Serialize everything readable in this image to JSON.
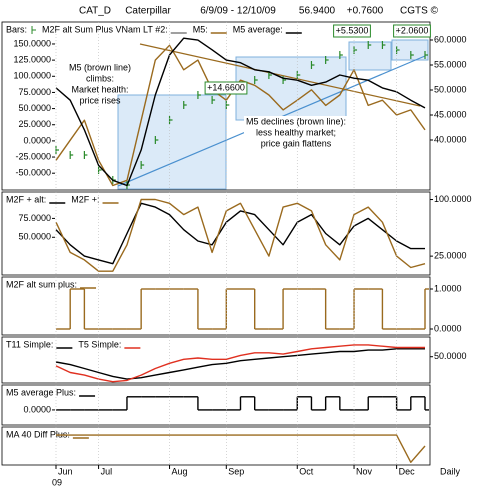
{
  "header": {
    "symbol": "CAT_D",
    "name": "Caterpillar",
    "range": "6/9/09 - 12/10/09",
    "last": "56.9400",
    "change": "+0.7600",
    "source": "CGTS ©"
  },
  "chart_data": [
    {
      "type": "line",
      "extra_legend": "M2F alt Sum Plus VNam LT #2:",
      "ylim": [
        -76,
        184
      ],
      "yticks": [
        {
          "value": 150,
          "label": "150.0000"
        },
        {
          "value": 125,
          "label": "125.0000"
        },
        {
          "value": 100,
          "label": "100.0000"
        },
        {
          "value": 75,
          "label": "75.0000"
        },
        {
          "value": 50,
          "label": "50.0000"
        },
        {
          "value": 25,
          "label": "25.0000"
        },
        {
          "value": 0,
          "label": "0.0000"
        },
        {
          "value": -25,
          "label": "-25.0000"
        },
        {
          "value": -50,
          "label": "-50.0000"
        }
      ],
      "y2lim": [
        30,
        63.6
      ],
      "y2ticks": [
        {
          "value": 60,
          "label": "60.0000"
        },
        {
          "value": 55,
          "label": "55.0000"
        },
        {
          "value": 50,
          "label": "50.0000"
        },
        {
          "value": 45,
          "label": "45.0000"
        },
        {
          "value": 40,
          "label": "40.0000"
        }
      ],
      "series": [
        {
          "name": "Bars:",
          "color": "#2a8a2a",
          "style": "tick",
          "axis": "y2",
          "values": [
            38,
            37,
            37,
            34,
            32,
            31,
            35,
            40,
            44,
            47,
            49,
            48,
            47,
            50,
            52,
            53,
            52,
            53,
            55,
            56,
            57,
            58,
            59,
            59,
            58,
            57,
            57
          ]
        },
        {
          "name": "M5:",
          "color": "#9a6a1e",
          "values": [
            -30,
            1,
            32,
            -30,
            -69,
            -61,
            32,
            125,
            148,
            110,
            125,
            79,
            63,
            94,
            86,
            71,
            48,
            63,
            79,
            55,
            71,
            110,
            55,
            63,
            40,
            48,
            17
          ]
        },
        {
          "name": "M5 average:",
          "color": "#000000",
          "values": [
            82,
            63,
            17,
            -38,
            -61,
            -69,
            -14,
            71,
            133,
            159,
            156,
            141,
            125,
            121,
            110,
            107,
            97,
            94,
            86,
            91,
            102,
            97,
            94,
            82,
            76,
            63,
            51
          ]
        }
      ],
      "annotations": [
        [
          "M5 (brown line)",
          "climbs:",
          "Market health:",
          "price rises"
        ],
        [
          "+14.6600"
        ],
        [
          "M5 declines (brown line):",
          "less healthy market;",
          "price gain flattens"
        ],
        [
          "+5.5300"
        ],
        [
          "+2.0600"
        ]
      ]
    },
    {
      "type": "line",
      "ylim": [
        0,
        110
      ],
      "yticks": [
        {
          "value": 75,
          "label": "75.0000"
        },
        {
          "value": 50,
          "label": "50.0000"
        }
      ],
      "y2ticks": [
        {
          "value": 100,
          "label": "100.0000"
        },
        {
          "value": 25,
          "label": "25.0000"
        }
      ],
      "series": [
        {
          "name": "M2F + alt:",
          "color": "#000000",
          "values": [
            60,
            40,
            25,
            20,
            15,
            55,
            95,
            90,
            80,
            60,
            45,
            40,
            70,
            85,
            80,
            60,
            40,
            70,
            80,
            55,
            40,
            65,
            75,
            60,
            45,
            35,
            35
          ]
        },
        {
          "name": "M2F +:",
          "color": "#9a6a1e",
          "values": [
            70,
            30,
            20,
            5,
            5,
            40,
            100,
            100,
            95,
            80,
            90,
            30,
            85,
            95,
            60,
            25,
            90,
            95,
            85,
            40,
            20,
            80,
            90,
            70,
            25,
            10,
            15
          ]
        }
      ]
    },
    {
      "type": "line",
      "ylim": [
        -0.15,
        1.3
      ],
      "y2ticks": [
        {
          "value": 1,
          "label": "1.0000"
        },
        {
          "value": 0,
          "label": "0.0000"
        }
      ],
      "series": [
        {
          "name": "M2F alt sum plus:",
          "color": "#9a6a1e",
          "style": "step",
          "values": [
            0,
            1,
            0,
            0,
            0,
            0,
            1,
            1,
            1,
            1,
            0,
            0,
            1,
            1,
            0,
            0,
            1,
            1,
            1,
            0,
            0,
            1,
            1,
            0,
            0,
            0,
            1
          ]
        }
      ]
    },
    {
      "type": "line",
      "ylim": [
        30,
        65
      ],
      "y2ticks": [
        {
          "value": 50,
          "label": "50.0000"
        }
      ],
      "series": [
        {
          "name": "T11 Simple:",
          "color": "#000000",
          "values": [
            46,
            44,
            41,
            38,
            35,
            33,
            34,
            36,
            38,
            40,
            42,
            44,
            45,
            47,
            48,
            49,
            50,
            51,
            52,
            53,
            54,
            54,
            55,
            55,
            56,
            56,
            56
          ]
        },
        {
          "name": "T5 Simple:",
          "color": "#e03020",
          "values": [
            43,
            38,
            36,
            33,
            31,
            32,
            36,
            41,
            45,
            48,
            49,
            48,
            48,
            51,
            53,
            53,
            52,
            54,
            56,
            57,
            58,
            59,
            59,
            58,
            57,
            57,
            57
          ]
        }
      ]
    },
    {
      "type": "line",
      "ylim": [
        -1.15,
        1.9
      ],
      "yticks": [
        {
          "value": 0,
          "label": "0.0000"
        }
      ],
      "series": [
        {
          "name": "M5 average Plus:",
          "color": "#000000",
          "style": "step",
          "values": [
            0,
            0,
            0,
            0,
            0,
            1,
            1,
            1,
            1,
            1,
            0,
            0,
            0,
            1,
            0,
            0,
            0,
            1,
            0,
            1,
            0,
            0,
            1,
            1,
            0,
            1,
            0
          ]
        }
      ]
    },
    {
      "type": "line",
      "ylim": [
        -0.1,
        1.3
      ],
      "categories": [
        "Jun",
        null,
        null,
        "Jul",
        null,
        null,
        null,
        null,
        "Aug",
        null,
        null,
        null,
        "Sep",
        null,
        null,
        null,
        null,
        "Oct",
        null,
        null,
        null,
        "Nov",
        null,
        null,
        "Dec",
        null,
        null
      ],
      "x_year": "09",
      "x_note": "Daily",
      "series": [
        {
          "name": "MA 40 Diff Plus:",
          "color": "#9a6a1e",
          "values": [
            1,
            1,
            1,
            1,
            1,
            1,
            1,
            1,
            1,
            1,
            1,
            1,
            1,
            1,
            1,
            1,
            1,
            1,
            1,
            1,
            1,
            1,
            1,
            1,
            1,
            0,
            0.6
          ]
        }
      ]
    }
  ]
}
